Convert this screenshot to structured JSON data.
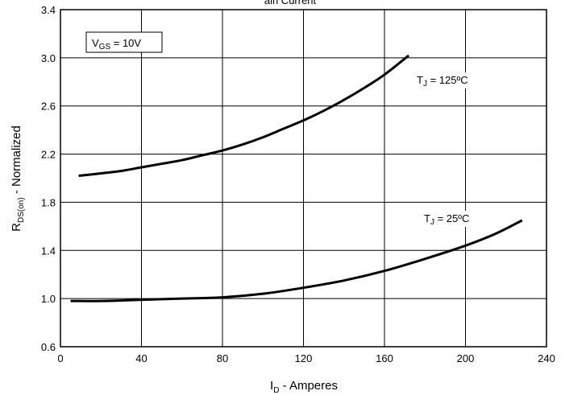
{
  "chart_data": {
    "type": "line",
    "title_fragment": "ain Current",
    "xlabel": {
      "main": "I",
      "sub": "D",
      "rest": " - Amperes"
    },
    "ylabel": {
      "main": "R",
      "sub": "DS(on)",
      "rest": " - Normalized"
    },
    "xlim": [
      0,
      240
    ],
    "ylim": [
      0.6,
      3.4
    ],
    "xticks": [
      0,
      40,
      80,
      120,
      160,
      200,
      240
    ],
    "yticks": [
      0.6,
      1.0,
      1.4,
      1.8,
      2.2,
      2.6,
      3.0,
      3.4
    ],
    "ytick_labels": [
      "0.6",
      "1.0",
      "1.4",
      "1.8",
      "2.2",
      "2.6",
      "3.0",
      "3.4"
    ],
    "grid": true,
    "condition_box": {
      "main": "V",
      "sub": "GS",
      "rest": " = 10V"
    },
    "series": [
      {
        "label": {
          "main": "T",
          "sub": "J",
          "rest": " = 125ºC"
        },
        "x": [
          9,
          20,
          30,
          40,
          50,
          60,
          70,
          80,
          90,
          100,
          110,
          120,
          130,
          140,
          150,
          160,
          172
        ],
        "y": [
          2.02,
          2.04,
          2.06,
          2.09,
          2.12,
          2.15,
          2.19,
          2.23,
          2.28,
          2.34,
          2.41,
          2.48,
          2.56,
          2.65,
          2.75,
          2.86,
          3.02
        ]
      },
      {
        "label": {
          "main": "T",
          "sub": "J",
          "rest": " = 25ºC"
        },
        "x": [
          5,
          20,
          40,
          60,
          80,
          100,
          120,
          140,
          160,
          180,
          200,
          215,
          228
        ],
        "y": [
          0.98,
          0.98,
          0.99,
          1.0,
          1.01,
          1.04,
          1.09,
          1.15,
          1.23,
          1.33,
          1.44,
          1.54,
          1.65
        ]
      }
    ]
  }
}
